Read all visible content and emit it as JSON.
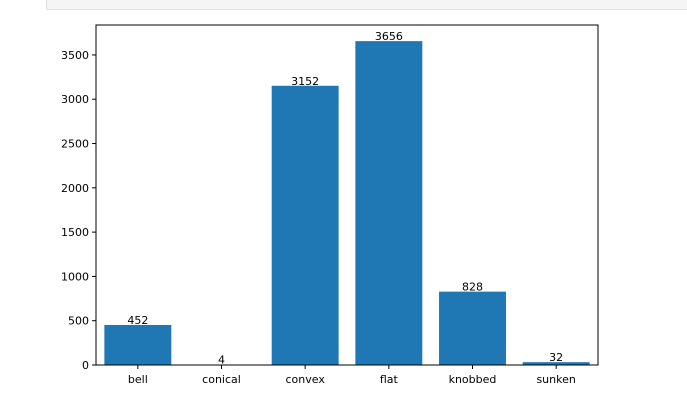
{
  "chart_data": {
    "type": "bar",
    "categories": [
      "bell",
      "conical",
      "convex",
      "flat",
      "knobbed",
      "sunken"
    ],
    "values": [
      452,
      4,
      3152,
      3656,
      828,
      32
    ],
    "data_labels": [
      "452",
      "4",
      "3152",
      "3656",
      "828",
      "32"
    ],
    "title": "",
    "xlabel": "",
    "ylabel": "",
    "ylim": [
      0,
      3838
    ],
    "yticks": [
      0,
      500,
      1000,
      1500,
      2000,
      2500,
      3000,
      3500
    ],
    "ytick_labels": [
      "0",
      "500",
      "1000",
      "1500",
      "2000",
      "2500",
      "3000",
      "3500"
    ],
    "grid": false,
    "bar_color": "#1f77b4"
  }
}
